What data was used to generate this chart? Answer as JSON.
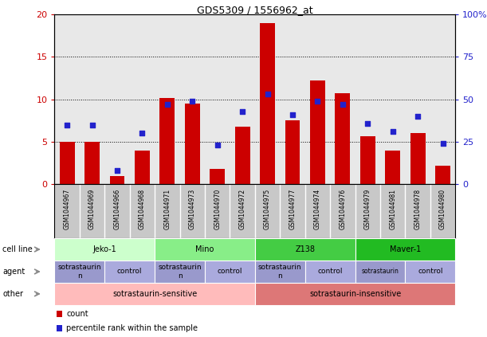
{
  "title": "GDS5309 / 1556962_at",
  "samples": [
    "GSM1044967",
    "GSM1044969",
    "GSM1044966",
    "GSM1044968",
    "GSM1044971",
    "GSM1044973",
    "GSM1044970",
    "GSM1044972",
    "GSM1044975",
    "GSM1044977",
    "GSM1044974",
    "GSM1044976",
    "GSM1044979",
    "GSM1044981",
    "GSM1044978",
    "GSM1044980"
  ],
  "counts": [
    5.0,
    5.0,
    1.0,
    4.0,
    10.2,
    9.5,
    1.8,
    6.8,
    19.0,
    7.5,
    12.2,
    10.7,
    5.7,
    4.0,
    6.0,
    2.2
  ],
  "percentiles": [
    35,
    35,
    8,
    30,
    47,
    49,
    23,
    43,
    53,
    41,
    49,
    47,
    36,
    31,
    40,
    24
  ],
  "bar_color": "#cc0000",
  "dot_color": "#2222cc",
  "ylim_left": [
    0,
    20
  ],
  "yticks_left": [
    0,
    5,
    10,
    15,
    20
  ],
  "ytick_labels_left": [
    "0",
    "5",
    "10",
    "15",
    "20"
  ],
  "ytick_labels_right": [
    "0",
    "25",
    "50",
    "75",
    "100%"
  ],
  "chart_bg": "#e8e8e8",
  "xtick_bg": "#c8c8c8",
  "cell_line_groups": [
    {
      "label": "Jeko-1",
      "start": 0,
      "end": 4,
      "color": "#ccffcc"
    },
    {
      "label": "Mino",
      "start": 4,
      "end": 8,
      "color": "#88dd88"
    },
    {
      "label": "Z138",
      "start": 8,
      "end": 12,
      "color": "#44bb44"
    },
    {
      "label": "Maver-1",
      "start": 12,
      "end": 16,
      "color": "#22bb22"
    }
  ],
  "agent_groups": [
    {
      "label": "sotrastaurin\nn",
      "start": 0,
      "end": 2,
      "color": "#9999cc"
    },
    {
      "label": "control",
      "start": 2,
      "end": 4,
      "color": "#aaaadd"
    },
    {
      "label": "sotrastaurin\nn",
      "start": 4,
      "end": 6,
      "color": "#9999cc"
    },
    {
      "label": "control",
      "start": 6,
      "end": 8,
      "color": "#aaaadd"
    },
    {
      "label": "sotrastaurin\nn",
      "start": 8,
      "end": 10,
      "color": "#9999cc"
    },
    {
      "label": "control",
      "start": 10,
      "end": 12,
      "color": "#aaaadd"
    },
    {
      "label": "sotrastaurin",
      "start": 12,
      "end": 14,
      "color": "#9999cc",
      "small": true
    },
    {
      "label": "control",
      "start": 14,
      "end": 16,
      "color": "#aaaadd"
    }
  ],
  "other_groups": [
    {
      "label": "sotrastaurin-sensitive",
      "start": 0,
      "end": 8,
      "color": "#ffbbbb"
    },
    {
      "label": "sotrastaurin-insensitive",
      "start": 8,
      "end": 16,
      "color": "#dd7777"
    }
  ],
  "row_labels": [
    "cell line",
    "agent",
    "other"
  ],
  "legend_count_color": "#cc0000",
  "legend_dot_color": "#2222cc",
  "bg_color": "#ffffff"
}
